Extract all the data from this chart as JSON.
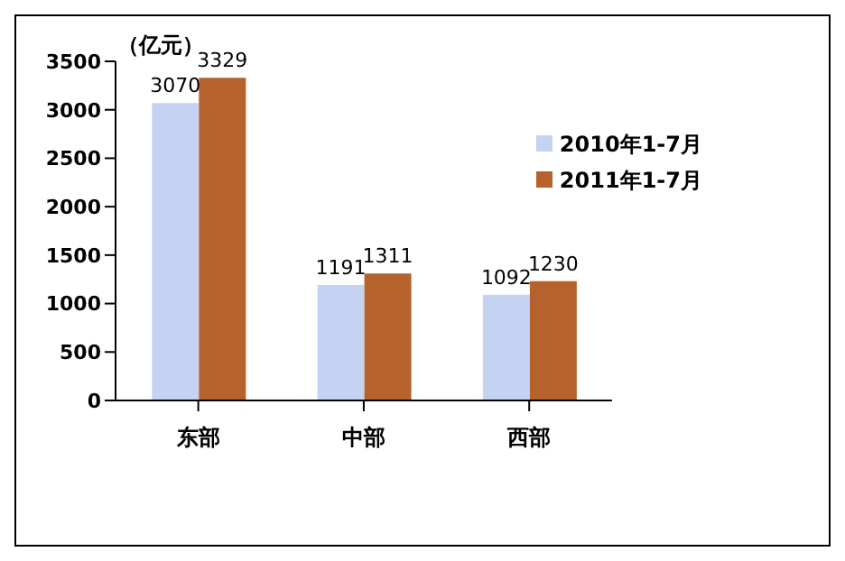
{
  "chart_data": {
    "type": "bar",
    "ylabel": "（亿元）",
    "categories": [
      "东部",
      "中部",
      "西部"
    ],
    "series": [
      {
        "name": "2010年1-7月",
        "color": "#c5d3f2",
        "values": [
          3070,
          1191,
          1092
        ]
      },
      {
        "name": "2011年1-7月",
        "color": "#b5622c",
        "values": [
          3329,
          1311,
          1230
        ]
      }
    ],
    "ylim": [
      0,
      3500
    ],
    "yticks": [
      0,
      500,
      1000,
      1500,
      2000,
      2500,
      3000,
      3500
    ],
    "data_labels": true,
    "grid": false,
    "legend": "top right"
  }
}
